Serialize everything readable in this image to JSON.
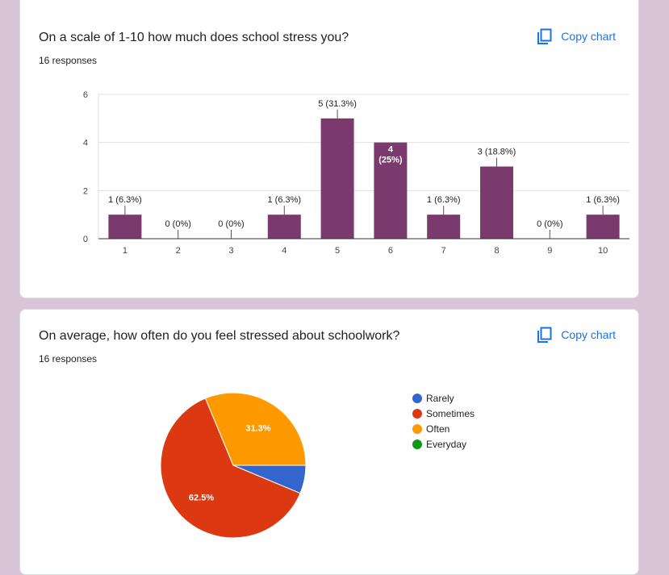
{
  "q1": {
    "title": "On a scale of 1-10 how much does school stress you?",
    "responses": "16 responses",
    "copy_label": "Copy chart"
  },
  "q2": {
    "title": "On average, how often do you feel stressed about schoolwork?",
    "responses": "16 responses",
    "copy_label": "Copy chart"
  },
  "chart_data": [
    {
      "type": "bar",
      "categories": [
        "1",
        "2",
        "3",
        "4",
        "5",
        "6",
        "7",
        "8",
        "9",
        "10"
      ],
      "values": [
        1,
        0,
        0,
        1,
        5,
        4,
        1,
        3,
        0,
        1
      ],
      "data_labels": [
        "1 (6.3%)",
        "0 (0%)",
        "0 (0%)",
        "1 (6.3%)",
        "5 (31.3%)",
        "4 (25%)",
        "1 (6.3%)",
        "3 (18.8%)",
        "0 (0%)",
        "1 (6.3%)"
      ],
      "ylim": [
        0,
        6
      ],
      "yticks": [
        0,
        2,
        4,
        6
      ],
      "grid": true,
      "color": "#7b3a6e"
    },
    {
      "type": "pie",
      "labels": [
        "Rarely",
        "Sometimes",
        "Often",
        "Everyday"
      ],
      "values": [
        6.3,
        62.5,
        31.3,
        0
      ],
      "slice_labels": [
        "",
        "62.5%",
        "31.3%",
        ""
      ],
      "colors": [
        "#3366cc",
        "#dc3912",
        "#ff9900",
        "#109618"
      ],
      "legend": "right"
    }
  ]
}
